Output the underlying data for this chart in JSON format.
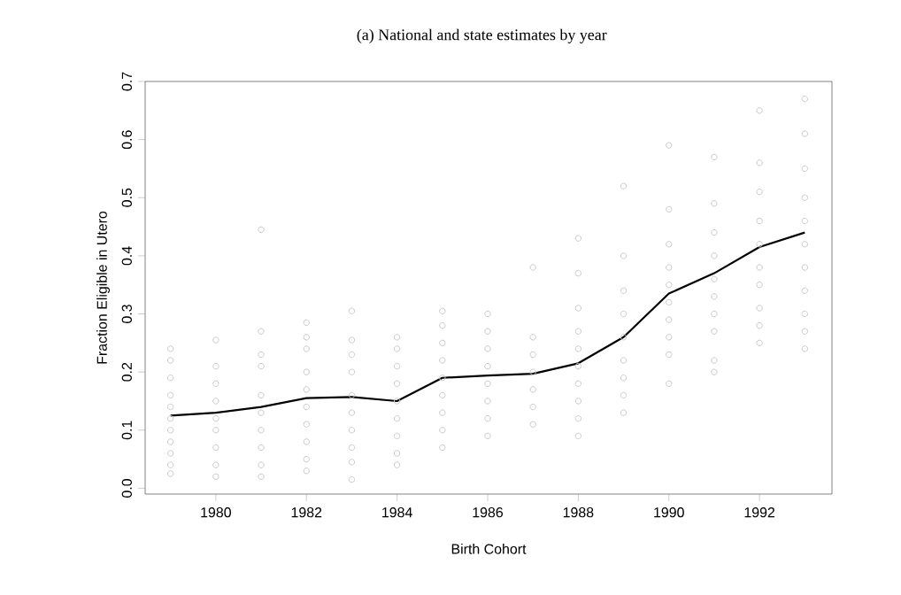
{
  "chart_data": {
    "type": "scatter",
    "title": "(a) National and state estimates by year",
    "xlabel": "Birth Cohort",
    "ylabel": "Fraction Eligible in Utero",
    "xlim": [
      1978.44,
      1993.6
    ],
    "ylim": [
      -0.01,
      0.7
    ],
    "xticks": [
      1980,
      1982,
      1984,
      1986,
      1988,
      1990,
      1992
    ],
    "yticks": [
      {
        "value": 0,
        "label": "0.0"
      },
      0.1,
      0.2,
      0.3,
      0.4,
      0.5,
      0.6,
      0.7
    ],
    "series": [
      {
        "type": "scatter",
        "marker": "circle",
        "color": "#c8c8c8",
        "x": [
          1979,
          1979,
          1979,
          1979,
          1979,
          1979,
          1979,
          1979,
          1979,
          1979,
          1979,
          1980,
          1980,
          1980,
          1980,
          1980,
          1980,
          1980,
          1980,
          1980,
          1981,
          1981,
          1981,
          1981,
          1981,
          1981,
          1981,
          1981,
          1981,
          1981,
          1982,
          1982,
          1982,
          1982,
          1982,
          1982,
          1982,
          1982,
          1982,
          1982,
          1983,
          1983,
          1983,
          1983,
          1983,
          1983,
          1983,
          1983,
          1983,
          1983,
          1984,
          1984,
          1984,
          1984,
          1984,
          1984,
          1984,
          1984,
          1984,
          1985,
          1985,
          1985,
          1985,
          1985,
          1985,
          1985,
          1985,
          1985,
          1986,
          1986,
          1986,
          1986,
          1986,
          1986,
          1986,
          1986,
          1987,
          1987,
          1987,
          1987,
          1987,
          1987,
          1987,
          1988,
          1988,
          1988,
          1988,
          1988,
          1988,
          1988,
          1988,
          1988,
          1988,
          1989,
          1989,
          1989,
          1989,
          1989,
          1989,
          1989,
          1989,
          1989,
          1990,
          1990,
          1990,
          1990,
          1990,
          1990,
          1990,
          1990,
          1990,
          1990,
          1991,
          1991,
          1991,
          1991,
          1991,
          1991,
          1991,
          1991,
          1991,
          1991,
          1992,
          1992,
          1992,
          1992,
          1992,
          1992,
          1992,
          1992,
          1992,
          1992,
          1993,
          1993,
          1993,
          1993,
          1993,
          1993,
          1993,
          1993,
          1993,
          1993,
          1993
        ],
        "values": [
          0.025,
          0.04,
          0.06,
          0.08,
          0.1,
          0.12,
          0.14,
          0.16,
          0.19,
          0.22,
          0.24,
          0.02,
          0.04,
          0.07,
          0.1,
          0.12,
          0.15,
          0.18,
          0.21,
          0.255,
          0.02,
          0.04,
          0.07,
          0.1,
          0.13,
          0.16,
          0.21,
          0.23,
          0.27,
          0.445,
          0.03,
          0.05,
          0.08,
          0.11,
          0.14,
          0.17,
          0.2,
          0.24,
          0.26,
          0.285,
          0.015,
          0.045,
          0.07,
          0.1,
          0.13,
          0.16,
          0.2,
          0.23,
          0.255,
          0.305,
          0.04,
          0.06,
          0.09,
          0.12,
          0.15,
          0.18,
          0.21,
          0.24,
          0.26,
          0.07,
          0.1,
          0.13,
          0.16,
          0.19,
          0.22,
          0.25,
          0.28,
          0.305,
          0.09,
          0.12,
          0.15,
          0.18,
          0.21,
          0.24,
          0.27,
          0.3,
          0.11,
          0.14,
          0.17,
          0.2,
          0.23,
          0.26,
          0.38,
          0.09,
          0.12,
          0.15,
          0.18,
          0.21,
          0.24,
          0.27,
          0.31,
          0.37,
          0.43,
          0.13,
          0.16,
          0.19,
          0.22,
          0.26,
          0.3,
          0.34,
          0.4,
          0.52,
          0.18,
          0.23,
          0.26,
          0.29,
          0.32,
          0.35,
          0.38,
          0.42,
          0.48,
          0.59,
          0.2,
          0.22,
          0.27,
          0.3,
          0.33,
          0.36,
          0.4,
          0.44,
          0.49,
          0.57,
          0.25,
          0.28,
          0.31,
          0.35,
          0.38,
          0.42,
          0.46,
          0.51,
          0.56,
          0.65,
          0.24,
          0.27,
          0.3,
          0.34,
          0.38,
          0.42,
          0.46,
          0.5,
          0.55,
          0.61,
          0.67
        ]
      },
      {
        "type": "line",
        "marker": "none",
        "color": "#000000",
        "x": [
          1979,
          1980,
          1981,
          1982,
          1983,
          1984,
          1985,
          1986,
          1987,
          1988,
          1989,
          1990,
          1991,
          1992,
          1993
        ],
        "values": [
          0.125,
          0.13,
          0.14,
          0.155,
          0.157,
          0.15,
          0.19,
          0.194,
          0.197,
          0.215,
          0.26,
          0.335,
          0.37,
          0.415,
          0.44
        ]
      }
    ]
  }
}
